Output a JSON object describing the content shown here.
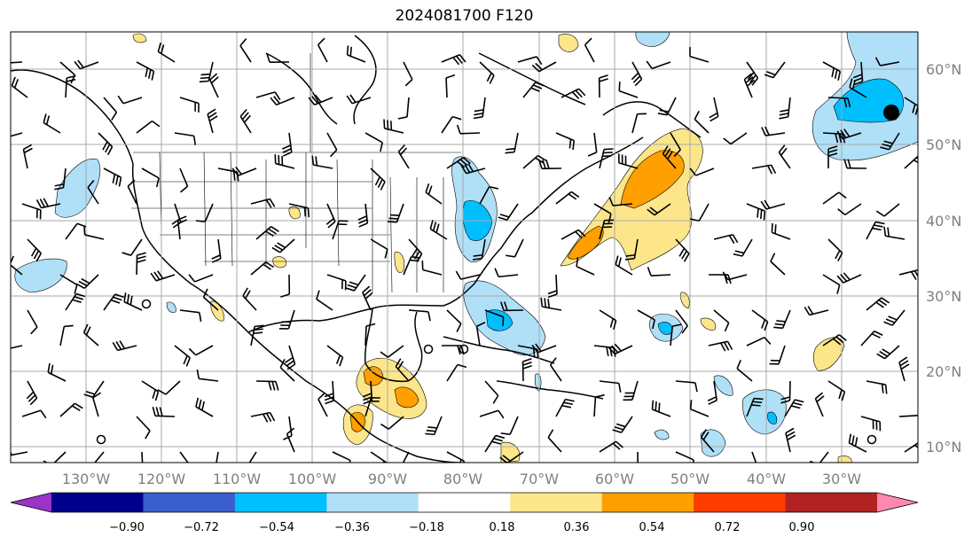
{
  "title": "2024081700 F120",
  "lon_labels": [
    "130°W",
    "120°W",
    "110°W",
    "100°W",
    "90°W",
    "80°W",
    "70°W",
    "60°W",
    "50°W",
    "40°W",
    "30°W"
  ],
  "lat_labels": [
    "60°N",
    "50°N",
    "40°N",
    "30°N",
    "20°N",
    "10°N"
  ],
  "colorbar": {
    "ticks": [
      "−0.90",
      "−0.72",
      "−0.54",
      "−0.36",
      "−0.18",
      "0.18",
      "0.36",
      "0.54",
      "0.72",
      "0.90"
    ],
    "colors": [
      "#9a34c8",
      "#00008b",
      "#3a5fcd",
      "#00bfff",
      "#b0e0f8",
      "#ffffff",
      "#fde68a",
      "#ff9f00",
      "#ff3b00",
      "#b22222",
      "#ff88b0"
    ]
  },
  "colors": {
    "light_blue": "#b0e0f8",
    "blue": "#00bfff",
    "light_yellow": "#fde68a",
    "orange": "#ff9f00",
    "grid": "#a9a9a9"
  }
}
